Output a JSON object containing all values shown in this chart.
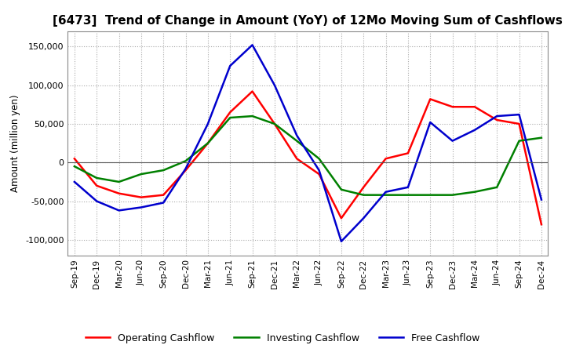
{
  "title": "[6473]  Trend of Change in Amount (YoY) of 12Mo Moving Sum of Cashflows",
  "ylabel": "Amount (million yen)",
  "x_labels": [
    "Sep-19",
    "Dec-19",
    "Mar-20",
    "Jun-20",
    "Sep-20",
    "Dec-20",
    "Mar-21",
    "Jun-21",
    "Sep-21",
    "Dec-21",
    "Mar-22",
    "Jun-22",
    "Sep-22",
    "Dec-22",
    "Mar-23",
    "Jun-23",
    "Sep-23",
    "Dec-23",
    "Mar-24",
    "Jun-24",
    "Sep-24",
    "Dec-24"
  ],
  "operating": [
    5000,
    -30000,
    -40000,
    -45000,
    -42000,
    -10000,
    25000,
    65000,
    92000,
    50000,
    5000,
    -15000,
    -72000,
    -32000,
    5000,
    12000,
    82000,
    72000,
    72000,
    55000,
    50000,
    -80000
  ],
  "investing": [
    -5000,
    -20000,
    -25000,
    -15000,
    -10000,
    2000,
    25000,
    58000,
    60000,
    50000,
    28000,
    5000,
    -35000,
    -42000,
    -42000,
    -42000,
    -42000,
    -42000,
    -38000,
    -32000,
    28000,
    32000
  ],
  "free": [
    -25000,
    -50000,
    -62000,
    -58000,
    -52000,
    -8000,
    50000,
    125000,
    152000,
    100000,
    35000,
    -10000,
    -102000,
    -72000,
    -38000,
    -32000,
    52000,
    28000,
    42000,
    60000,
    62000,
    -48000
  ],
  "operating_color": "#ff0000",
  "investing_color": "#008000",
  "free_color": "#0000cd",
  "ylim": [
    -120000,
    170000
  ],
  "yticks": [
    -100000,
    -50000,
    0,
    50000,
    100000,
    150000
  ],
  "background_color": "#ffffff",
  "grid_color": "#aaaaaa",
  "title_fontsize": 11,
  "legend_labels": [
    "Operating Cashflow",
    "Investing Cashflow",
    "Free Cashflow"
  ]
}
